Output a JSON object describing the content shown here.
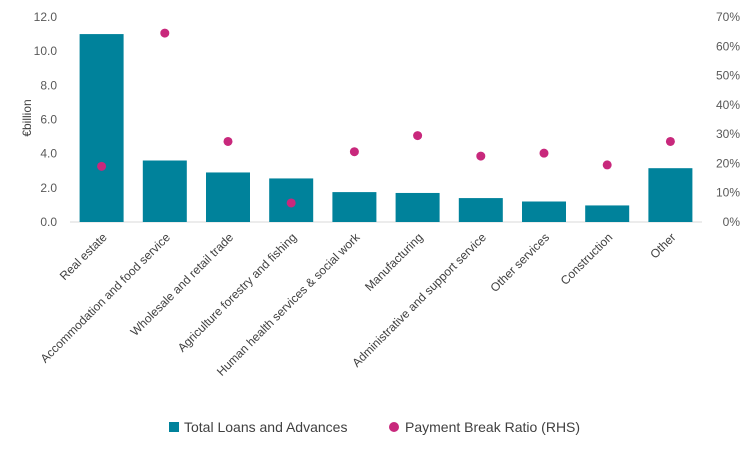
{
  "chart_data": {
    "type": "bar",
    "categories": [
      "Real estate",
      "Accommodation and food service",
      "Wholesale and retail trade",
      "Agriculture forestry and fishing",
      "Human health services & social work",
      "Manufacturing",
      "Administrative and support service",
      "Other services",
      "Construction",
      "Other"
    ],
    "series": [
      {
        "name": "Total Loans and Advances",
        "type": "bar",
        "axis": "left",
        "color": "#00829b",
        "values": [
          11.0,
          3.6,
          2.9,
          2.55,
          1.75,
          1.7,
          1.4,
          1.2,
          0.97,
          3.15
        ]
      },
      {
        "name": "Payment Break Ratio (RHS)",
        "type": "scatter",
        "axis": "right",
        "color": "#c8287c",
        "values": [
          0.19,
          0.645,
          0.275,
          0.065,
          0.24,
          0.295,
          0.225,
          0.235,
          0.195,
          0.275
        ]
      }
    ],
    "ylabel": "€billion",
    "ylim": [
      0,
      12
    ],
    "yticks": [
      "0.0",
      "2.0",
      "4.0",
      "6.0",
      "8.0",
      "10.0",
      "12.0"
    ],
    "y2lim": [
      0,
      0.7
    ],
    "y2ticks": [
      "0%",
      "10%",
      "20%",
      "30%",
      "40%",
      "50%",
      "60%",
      "70%"
    ],
    "grid": false,
    "legend": "bottom"
  }
}
